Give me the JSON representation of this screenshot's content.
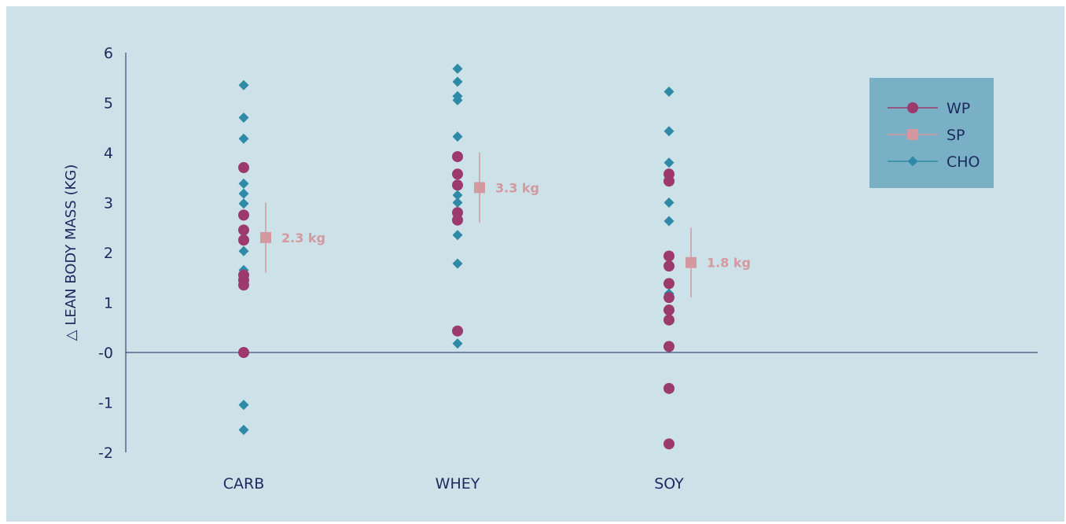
{
  "chart_data": {
    "type": "scatter",
    "ylabel": "△ LEAN BODY MASS (KG)",
    "ylim": [
      -2,
      6
    ],
    "yticks": [
      {
        "value": 6,
        "label": "6"
      },
      {
        "value": 5,
        "label": "5"
      },
      {
        "value": 4,
        "label": "4"
      },
      {
        "value": 3,
        "label": "3"
      },
      {
        "value": 2,
        "label": "2"
      },
      {
        "value": 1,
        "label": "1"
      },
      {
        "value": 0,
        "label": "-0"
      },
      {
        "value": -1,
        "label": "-1"
      },
      {
        "value": -2,
        "label": "-2"
      }
    ],
    "categories": [
      "CARB",
      "WHEY",
      "SOY"
    ],
    "legend_position": "top-right",
    "series": [
      {
        "name": "WP",
        "marker": "circle",
        "color": "#9b3a6b",
        "points": [
          {
            "category": "CARB",
            "y": 3.7
          },
          {
            "category": "CARB",
            "y": 2.75
          },
          {
            "category": "CARB",
            "y": 2.45
          },
          {
            "category": "CARB",
            "y": 2.25
          },
          {
            "category": "CARB",
            "y": 1.55
          },
          {
            "category": "CARB",
            "y": 1.45
          },
          {
            "category": "CARB",
            "y": 1.35
          },
          {
            "category": "CARB",
            "y": 0.0
          },
          {
            "category": "WHEY",
            "y": 3.92
          },
          {
            "category": "WHEY",
            "y": 3.57
          },
          {
            "category": "WHEY",
            "y": 3.35
          },
          {
            "category": "WHEY",
            "y": 2.8
          },
          {
            "category": "WHEY",
            "y": 2.65
          },
          {
            "category": "WHEY",
            "y": 0.43
          },
          {
            "category": "SOY",
            "y": 3.57
          },
          {
            "category": "SOY",
            "y": 3.43
          },
          {
            "category": "SOY",
            "y": 1.93
          },
          {
            "category": "SOY",
            "y": 1.73
          },
          {
            "category": "SOY",
            "y": 1.38
          },
          {
            "category": "SOY",
            "y": 1.1
          },
          {
            "category": "SOY",
            "y": 0.85
          },
          {
            "category": "SOY",
            "y": 0.65
          },
          {
            "category": "SOY",
            "y": 0.12
          },
          {
            "category": "SOY",
            "y": -0.72
          },
          {
            "category": "SOY",
            "y": -1.83
          }
        ]
      },
      {
        "name": "SP",
        "marker": "square",
        "color": "#d4999e",
        "points": [
          {
            "category": "CARB",
            "y": 2.3,
            "err_low": 1.6,
            "err_high": 3.0,
            "label": "2.3 kg"
          },
          {
            "category": "WHEY",
            "y": 3.3,
            "err_low": 2.6,
            "err_high": 4.0,
            "label": "3.3 kg"
          },
          {
            "category": "SOY",
            "y": 1.8,
            "err_low": 1.1,
            "err_high": 2.5,
            "label": "1.8 kg"
          }
        ]
      },
      {
        "name": "CHO",
        "marker": "diamond",
        "color": "#2e8aa6",
        "points": [
          {
            "category": "CARB",
            "y": 5.35
          },
          {
            "category": "CARB",
            "y": 4.7
          },
          {
            "category": "CARB",
            "y": 4.28
          },
          {
            "category": "CARB",
            "y": 3.38
          },
          {
            "category": "CARB",
            "y": 3.18
          },
          {
            "category": "CARB",
            "y": 2.98
          },
          {
            "category": "CARB",
            "y": 2.03
          },
          {
            "category": "CARB",
            "y": 1.65
          },
          {
            "category": "CARB",
            "y": -1.05
          },
          {
            "category": "CARB",
            "y": -1.55
          },
          {
            "category": "WHEY",
            "y": 5.68
          },
          {
            "category": "WHEY",
            "y": 5.42
          },
          {
            "category": "WHEY",
            "y": 5.13
          },
          {
            "category": "WHEY",
            "y": 5.05
          },
          {
            "category": "WHEY",
            "y": 4.32
          },
          {
            "category": "WHEY",
            "y": 3.15
          },
          {
            "category": "WHEY",
            "y": 3.0
          },
          {
            "category": "WHEY",
            "y": 2.35
          },
          {
            "category": "WHEY",
            "y": 1.78
          },
          {
            "category": "WHEY",
            "y": 0.18
          },
          {
            "category": "SOY",
            "y": 5.22
          },
          {
            "category": "SOY",
            "y": 4.43
          },
          {
            "category": "SOY",
            "y": 3.8
          },
          {
            "category": "SOY",
            "y": 3.0
          },
          {
            "category": "SOY",
            "y": 2.63
          },
          {
            "category": "SOY",
            "y": 1.18
          }
        ]
      }
    ]
  }
}
